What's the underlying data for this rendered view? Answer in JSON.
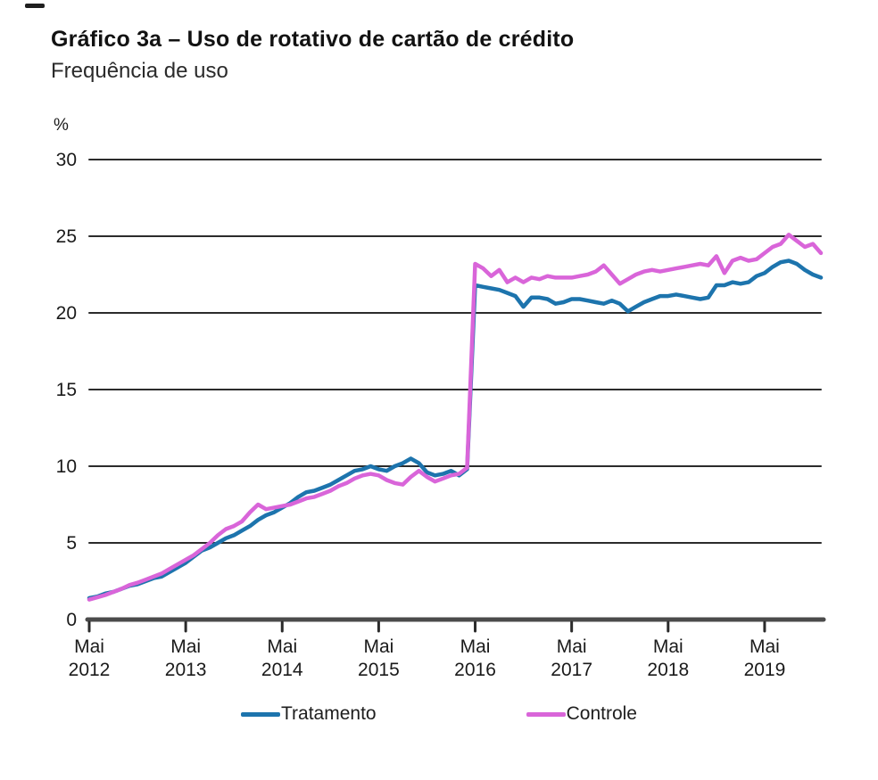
{
  "header": {
    "title": "Gráfico 3a – Uso de rotativo de cartão de crédito",
    "subtitle": "Frequência de uso"
  },
  "chart_data": {
    "type": "line",
    "title": "Gráfico 3a – Uso de rotativo de cartão de crédito",
    "subtitle": "Frequência de uso",
    "y_unit_label": "%",
    "ylim": [
      0,
      30
    ],
    "yticks": [
      0,
      5,
      10,
      15,
      20,
      25,
      30
    ],
    "grid": "horizontal-only",
    "legend_position": "bottom-center",
    "x_sampling": "monthly",
    "x_range": [
      "2012-05",
      "2019-12"
    ],
    "x_tick_every": 12,
    "x_tick_labels": [
      {
        "line1": "Mai",
        "line2": "2012"
      },
      {
        "line1": "Mai",
        "line2": "2013"
      },
      {
        "line1": "Mai",
        "line2": "2014"
      },
      {
        "line1": "Mai",
        "line2": "2015"
      },
      {
        "line1": "Mai",
        "line2": "2016"
      },
      {
        "line1": "Mai",
        "line2": "2017"
      },
      {
        "line1": "Mai",
        "line2": "2018"
      },
      {
        "line1": "Mai",
        "line2": "2019"
      }
    ],
    "colors": {
      "gridline": "#2b2b2b",
      "baseline": "#4b4b4b",
      "tick": "#2b2b2b",
      "text": "#1a1a1a"
    },
    "series": [
      {
        "name": "Tratamento",
        "color": "#1d74ad",
        "values": [
          1.4,
          1.5,
          1.7,
          1.8,
          2.0,
          2.2,
          2.3,
          2.5,
          2.7,
          2.8,
          3.1,
          3.4,
          3.7,
          4.1,
          4.5,
          4.7,
          5.0,
          5.3,
          5.5,
          5.8,
          6.1,
          6.5,
          6.8,
          7.0,
          7.3,
          7.6,
          8.0,
          8.3,
          8.4,
          8.6,
          8.8,
          9.1,
          9.4,
          9.7,
          9.8,
          10.0,
          9.8,
          9.7,
          10.0,
          10.2,
          10.5,
          10.2,
          9.6,
          9.4,
          9.5,
          9.7,
          9.4,
          9.8,
          21.8,
          21.7,
          21.6,
          21.5,
          21.3,
          21.1,
          20.4,
          21.0,
          21.0,
          20.9,
          20.6,
          20.7,
          20.9,
          20.9,
          20.8,
          20.7,
          20.6,
          20.8,
          20.6,
          20.1,
          20.4,
          20.7,
          20.9,
          21.1,
          21.1,
          21.2,
          21.1,
          21.0,
          20.9,
          21.0,
          21.8,
          21.8,
          22.0,
          21.9,
          22.0,
          22.4,
          22.6,
          23.0,
          23.3,
          23.4,
          23.2,
          22.8,
          22.5,
          22.3
        ]
      },
      {
        "name": "Controle",
        "color": "#d965d9",
        "values": [
          1.3,
          1.45,
          1.6,
          1.8,
          2.0,
          2.25,
          2.4,
          2.6,
          2.8,
          3.0,
          3.3,
          3.6,
          3.9,
          4.2,
          4.6,
          5.0,
          5.5,
          5.9,
          6.1,
          6.4,
          7.0,
          7.5,
          7.2,
          7.3,
          7.4,
          7.5,
          7.7,
          7.9,
          8.0,
          8.2,
          8.4,
          8.7,
          8.9,
          9.2,
          9.4,
          9.5,
          9.4,
          9.1,
          8.9,
          8.8,
          9.3,
          9.7,
          9.3,
          9.0,
          9.2,
          9.4,
          9.5,
          9.9,
          23.2,
          22.9,
          22.4,
          22.8,
          22.0,
          22.3,
          22.0,
          22.3,
          22.2,
          22.4,
          22.3,
          22.3,
          22.3,
          22.4,
          22.5,
          22.7,
          23.1,
          22.5,
          21.9,
          22.2,
          22.5,
          22.7,
          22.8,
          22.7,
          22.8,
          22.9,
          23.0,
          23.1,
          23.2,
          23.1,
          23.7,
          22.6,
          23.4,
          23.6,
          23.4,
          23.5,
          23.9,
          24.3,
          24.5,
          25.1,
          24.7,
          24.3,
          24.5,
          23.9
        ]
      }
    ]
  }
}
